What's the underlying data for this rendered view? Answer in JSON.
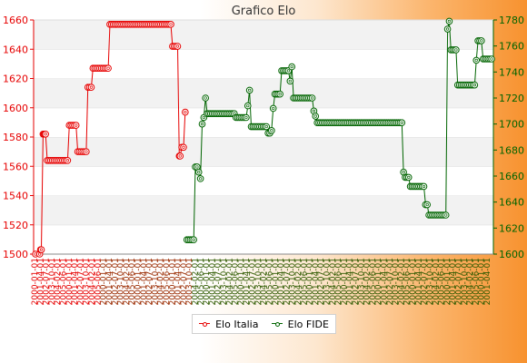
{
  "chart_data": {
    "type": "line",
    "title": "Grafico Elo",
    "xlabel": "",
    "ylabel_left": "",
    "ylabel_right": "",
    "y_left_range": [
      1500,
      1660
    ],
    "y_left_ticks": [
      1500,
      1520,
      1540,
      1560,
      1580,
      1600,
      1620,
      1640,
      1660
    ],
    "y_right_range": [
      1600,
      1780
    ],
    "y_right_ticks": [
      1600,
      1620,
      1640,
      1660,
      1680,
      1700,
      1720,
      1740,
      1760,
      1780
    ],
    "grid": "horizontal bands",
    "legend_position": "bottom-center",
    "series": [
      {
        "name": "Elo Italia",
        "axis": "left",
        "color": "#e60000",
        "points": [
          [
            0,
            1500
          ],
          [
            5,
            1500
          ],
          [
            6,
            1503
          ],
          [
            7,
            1503
          ],
          [
            9,
            1582
          ],
          [
            10,
            1582
          ],
          [
            11,
            1582
          ],
          [
            12,
            1582
          ],
          [
            14,
            1564
          ],
          [
            16,
            1564
          ],
          [
            18,
            1564
          ],
          [
            20,
            1564
          ],
          [
            22,
            1564
          ],
          [
            24,
            1564
          ],
          [
            26,
            1564
          ],
          [
            28,
            1564
          ],
          [
            30,
            1564
          ],
          [
            32,
            1564
          ],
          [
            34,
            1564
          ],
          [
            36,
            1564
          ],
          [
            38,
            1564
          ],
          [
            40,
            1588
          ],
          [
            42,
            1588
          ],
          [
            44,
            1588
          ],
          [
            46,
            1588
          ],
          [
            48,
            1588
          ],
          [
            50,
            1570
          ],
          [
            52,
            1570
          ],
          [
            54,
            1570
          ],
          [
            56,
            1570
          ],
          [
            58,
            1570
          ],
          [
            60,
            1570
          ],
          [
            62,
            1614
          ],
          [
            64,
            1614
          ],
          [
            66,
            1614
          ],
          [
            68,
            1627
          ],
          [
            70,
            1627
          ],
          [
            72,
            1627
          ],
          [
            74,
            1627
          ],
          [
            76,
            1627
          ],
          [
            78,
            1627
          ],
          [
            80,
            1627
          ],
          [
            82,
            1627
          ],
          [
            84,
            1627
          ],
          [
            86,
            1627
          ],
          [
            88,
            1657
          ],
          [
            90,
            1657
          ],
          [
            92,
            1657
          ],
          [
            94,
            1657
          ],
          [
            96,
            1657
          ],
          [
            98,
            1657
          ],
          [
            100,
            1657
          ],
          [
            102,
            1657
          ],
          [
            104,
            1657
          ],
          [
            106,
            1657
          ],
          [
            108,
            1657
          ],
          [
            110,
            1657
          ],
          [
            112,
            1657
          ],
          [
            114,
            1657
          ],
          [
            116,
            1657
          ],
          [
            118,
            1657
          ],
          [
            120,
            1657
          ],
          [
            122,
            1657
          ],
          [
            124,
            1657
          ],
          [
            126,
            1657
          ],
          [
            128,
            1657
          ],
          [
            130,
            1657
          ],
          [
            132,
            1657
          ],
          [
            134,
            1657
          ],
          [
            136,
            1657
          ],
          [
            138,
            1657
          ],
          [
            140,
            1657
          ],
          [
            142,
            1657
          ],
          [
            144,
            1657
          ],
          [
            146,
            1657
          ],
          [
            148,
            1657
          ],
          [
            150,
            1657
          ],
          [
            152,
            1657
          ],
          [
            154,
            1657
          ],
          [
            156,
            1657
          ],
          [
            158,
            1657
          ],
          [
            160,
            1657
          ],
          [
            162,
            1642
          ],
          [
            164,
            1642
          ],
          [
            166,
            1642
          ],
          [
            168,
            1642
          ],
          [
            170,
            1567
          ],
          [
            171,
            1567
          ],
          [
            173,
            1573
          ],
          [
            175,
            1573
          ],
          [
            177,
            1597
          ]
        ]
      },
      {
        "name": "Elo FIDE",
        "axis": "right",
        "color": "#006400",
        "points": [
          [
            179,
            1611
          ],
          [
            181,
            1611
          ],
          [
            183,
            1611
          ],
          [
            185,
            1611
          ],
          [
            187,
            1611
          ],
          [
            189,
            1667
          ],
          [
            191,
            1667
          ],
          [
            193,
            1663
          ],
          [
            195,
            1658
          ],
          [
            197,
            1700
          ],
          [
            199,
            1705
          ],
          [
            201,
            1720
          ],
          [
            203,
            1708
          ],
          [
            205,
            1708
          ],
          [
            207,
            1708
          ],
          [
            209,
            1708
          ],
          [
            211,
            1708
          ],
          [
            213,
            1708
          ],
          [
            215,
            1708
          ],
          [
            217,
            1708
          ],
          [
            219,
            1708
          ],
          [
            221,
            1708
          ],
          [
            223,
            1708
          ],
          [
            225,
            1708
          ],
          [
            227,
            1708
          ],
          [
            229,
            1708
          ],
          [
            231,
            1708
          ],
          [
            233,
            1708
          ],
          [
            235,
            1708
          ],
          [
            237,
            1705
          ],
          [
            239,
            1705
          ],
          [
            241,
            1705
          ],
          [
            243,
            1705
          ],
          [
            245,
            1705
          ],
          [
            247,
            1705
          ],
          [
            249,
            1705
          ],
          [
            251,
            1714
          ],
          [
            253,
            1726
          ],
          [
            255,
            1698
          ],
          [
            257,
            1698
          ],
          [
            259,
            1698
          ],
          [
            261,
            1698
          ],
          [
            263,
            1698
          ],
          [
            265,
            1698
          ],
          [
            267,
            1698
          ],
          [
            269,
            1698
          ],
          [
            271,
            1698
          ],
          [
            273,
            1698
          ],
          [
            275,
            1693
          ],
          [
            277,
            1693
          ],
          [
            279,
            1695
          ],
          [
            281,
            1712
          ],
          [
            283,
            1723
          ],
          [
            285,
            1723
          ],
          [
            287,
            1723
          ],
          [
            289,
            1723
          ],
          [
            291,
            1741
          ],
          [
            293,
            1741
          ],
          [
            295,
            1741
          ],
          [
            297,
            1741
          ],
          [
            299,
            1741
          ],
          [
            301,
            1733
          ],
          [
            303,
            1744
          ],
          [
            305,
            1720
          ],
          [
            307,
            1720
          ],
          [
            309,
            1720
          ],
          [
            311,
            1720
          ],
          [
            313,
            1720
          ],
          [
            315,
            1720
          ],
          [
            317,
            1720
          ],
          [
            319,
            1720
          ],
          [
            321,
            1720
          ],
          [
            323,
            1720
          ],
          [
            325,
            1720
          ],
          [
            327,
            1720
          ],
          [
            329,
            1710
          ],
          [
            331,
            1706
          ],
          [
            333,
            1701
          ],
          [
            335,
            1701
          ],
          [
            337,
            1701
          ],
          [
            339,
            1701
          ],
          [
            341,
            1701
          ],
          [
            343,
            1701
          ],
          [
            345,
            1701
          ],
          [
            347,
            1701
          ],
          [
            349,
            1701
          ],
          [
            351,
            1701
          ],
          [
            353,
            1701
          ],
          [
            355,
            1701
          ],
          [
            357,
            1701
          ],
          [
            359,
            1701
          ],
          [
            361,
            1701
          ],
          [
            363,
            1701
          ],
          [
            365,
            1701
          ],
          [
            367,
            1701
          ],
          [
            369,
            1701
          ],
          [
            371,
            1701
          ],
          [
            373,
            1701
          ],
          [
            375,
            1701
          ],
          [
            377,
            1701
          ],
          [
            379,
            1701
          ],
          [
            381,
            1701
          ],
          [
            383,
            1701
          ],
          [
            385,
            1701
          ],
          [
            387,
            1701
          ],
          [
            389,
            1701
          ],
          [
            391,
            1701
          ],
          [
            393,
            1701
          ],
          [
            395,
            1701
          ],
          [
            397,
            1701
          ],
          [
            399,
            1701
          ],
          [
            401,
            1701
          ],
          [
            403,
            1701
          ],
          [
            405,
            1701
          ],
          [
            407,
            1701
          ],
          [
            409,
            1701
          ],
          [
            411,
            1701
          ],
          [
            413,
            1701
          ],
          [
            415,
            1701
          ],
          [
            417,
            1701
          ],
          [
            419,
            1701
          ],
          [
            421,
            1701
          ],
          [
            423,
            1701
          ],
          [
            425,
            1701
          ],
          [
            427,
            1701
          ],
          [
            429,
            1701
          ],
          [
            431,
            1701
          ],
          [
            433,
            1701
          ],
          [
            435,
            1663
          ],
          [
            437,
            1659
          ],
          [
            439,
            1659
          ],
          [
            441,
            1659
          ],
          [
            443,
            1652
          ],
          [
            445,
            1652
          ],
          [
            447,
            1652
          ],
          [
            449,
            1652
          ],
          [
            451,
            1652
          ],
          [
            453,
            1652
          ],
          [
            455,
            1652
          ],
          [
            457,
            1652
          ],
          [
            459,
            1652
          ],
          [
            461,
            1638
          ],
          [
            463,
            1638
          ],
          [
            465,
            1630
          ],
          [
            467,
            1630
          ],
          [
            469,
            1630
          ],
          [
            471,
            1630
          ],
          [
            473,
            1630
          ],
          [
            475,
            1630
          ],
          [
            477,
            1630
          ],
          [
            479,
            1630
          ],
          [
            481,
            1630
          ],
          [
            483,
            1630
          ],
          [
            485,
            1630
          ],
          [
            487,
            1773
          ],
          [
            489,
            1779
          ],
          [
            491,
            1757
          ],
          [
            493,
            1757
          ],
          [
            495,
            1757
          ],
          [
            497,
            1757
          ],
          [
            499,
            1730
          ],
          [
            501,
            1730
          ],
          [
            503,
            1730
          ],
          [
            505,
            1730
          ],
          [
            507,
            1730
          ],
          [
            509,
            1730
          ],
          [
            511,
            1730
          ],
          [
            513,
            1730
          ],
          [
            515,
            1730
          ],
          [
            517,
            1730
          ],
          [
            519,
            1730
          ],
          [
            521,
            1749
          ],
          [
            523,
            1764
          ],
          [
            525,
            1764
          ],
          [
            527,
            1764
          ],
          [
            529,
            1750
          ],
          [
            531,
            1750
          ],
          [
            533,
            1750
          ],
          [
            535,
            1750
          ],
          [
            537,
            1750
          ],
          [
            539,
            1750
          ]
        ]
      }
    ]
  },
  "legend": {
    "items": [
      {
        "label": "Elo Italia",
        "color": "#e60000"
      },
      {
        "label": "Elo FIDE",
        "color": "#006400"
      }
    ]
  }
}
